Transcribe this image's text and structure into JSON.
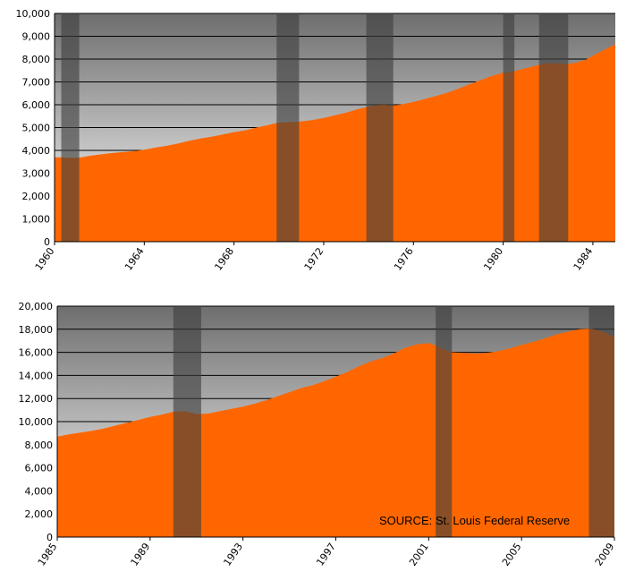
{
  "colors": {
    "area": "#FF6600",
    "recession": "#3F3F3F",
    "gridline": "#000000"
  },
  "source_note": "SOURCE: St. Louis Federal Reserve",
  "chart_data": [
    {
      "type": "area",
      "title": "",
      "xlabel": "",
      "ylabel": "",
      "xlim": [
        1960.0,
        1985.0
      ],
      "ylim": [
        0,
        10000
      ],
      "yticks": [
        0,
        1000,
        2000,
        3000,
        4000,
        5000,
        6000,
        7000,
        8000,
        9000,
        10000
      ],
      "ytick_labels": [
        "0",
        "1,000",
        "2,000",
        "3,000",
        "4,000",
        "5,000",
        "6,000",
        "7,000",
        "8,000",
        "9,000",
        "10,000"
      ],
      "xtick_labels": [
        "1960",
        "1964",
        "1968",
        "1972",
        "1976",
        "1980",
        "1984"
      ],
      "grid": true,
      "legend": "none",
      "x": [
        1960.0,
        1960.3,
        1960.6,
        1960.9,
        1961.2,
        1961.5,
        1962.0,
        1962.5,
        1963.0,
        1963.5,
        1964.0,
        1964.5,
        1965.0,
        1965.5,
        1966.0,
        1966.5,
        1967.0,
        1967.5,
        1968.0,
        1968.5,
        1969.0,
        1969.5,
        1969.9,
        1970.3,
        1970.8,
        1971.0,
        1971.5,
        1972.0,
        1972.5,
        1973.0,
        1973.5,
        1973.9,
        1974.3,
        1974.7,
        1975.1,
        1975.5,
        1976.0,
        1976.5,
        1977.0,
        1977.5,
        1978.0,
        1978.5,
        1979.0,
        1979.5,
        1980.0,
        1980.3,
        1980.6,
        1981.0,
        1981.5,
        1981.8,
        1982.2,
        1982.6,
        1982.9,
        1983.3,
        1983.7,
        1984.0,
        1984.5,
        1985.0
      ],
      "series": [
        {
          "values": [
            3700,
            3700,
            3680,
            3670,
            3700,
            3750,
            3820,
            3880,
            3920,
            3960,
            4030,
            4120,
            4200,
            4300,
            4420,
            4520,
            4600,
            4700,
            4800,
            4880,
            5000,
            5100,
            5200,
            5230,
            5250,
            5270,
            5330,
            5420,
            5540,
            5650,
            5800,
            5900,
            5980,
            6000,
            5960,
            6020,
            6120,
            6250,
            6380,
            6520,
            6700,
            6900,
            7080,
            7260,
            7400,
            7420,
            7500,
            7600,
            7720,
            7800,
            7820,
            7800,
            7780,
            7850,
            7980,
            8150,
            8400,
            8650
          ]
        }
      ],
      "recessions": [
        [
          1960.3,
          1961.1
        ],
        [
          1969.9,
          1970.9
        ],
        [
          1973.9,
          1975.1
        ],
        [
          1980.0,
          1980.5
        ],
        [
          1981.6,
          1982.9
        ]
      ]
    },
    {
      "type": "area",
      "title": "",
      "xlabel": "",
      "ylabel": "",
      "xlim": [
        1985.0,
        2009.0
      ],
      "ylim": [
        0,
        20000
      ],
      "yticks": [
        0,
        2000,
        4000,
        6000,
        8000,
        10000,
        12000,
        14000,
        16000,
        18000,
        20000
      ],
      "ytick_labels": [
        "0",
        "2,000",
        "4,000",
        "6,000",
        "8,000",
        "10,000",
        "12,000",
        "14,000",
        "16,000",
        "18,000",
        "20,000"
      ],
      "xtick_labels": [
        "1985",
        "1989",
        "1993",
        "1997",
        "2001",
        "2005",
        "2009"
      ],
      "grid": true,
      "legend": "none",
      "x": [
        1985.0,
        1985.5,
        1986.0,
        1986.5,
        1987.0,
        1987.5,
        1988.0,
        1988.5,
        1989.0,
        1989.5,
        1990.0,
        1990.5,
        1991.0,
        1991.5,
        1992.0,
        1992.5,
        1993.0,
        1993.5,
        1994.0,
        1994.5,
        1995.0,
        1995.5,
        1996.0,
        1996.5,
        1997.0,
        1997.5,
        1998.0,
        1998.5,
        1999.0,
        1999.5,
        2000.0,
        2000.5,
        2001.0,
        2001.3,
        2001.6,
        2002.0,
        2002.5,
        2003.0,
        2003.5,
        2004.0,
        2004.5,
        2005.0,
        2005.5,
        2006.0,
        2006.5,
        2007.0,
        2007.5,
        2008.0,
        2008.5,
        2009.0
      ],
      "series": [
        {
          "values": [
            8700,
            8900,
            9050,
            9200,
            9400,
            9650,
            9900,
            10150,
            10400,
            10600,
            10850,
            10900,
            10650,
            10700,
            10900,
            11100,
            11300,
            11550,
            11850,
            12200,
            12550,
            12900,
            13150,
            13500,
            13900,
            14300,
            14800,
            15200,
            15500,
            15900,
            16400,
            16700,
            16800,
            16600,
            16300,
            16000,
            15950,
            15900,
            15950,
            16100,
            16350,
            16650,
            16900,
            17200,
            17550,
            17800,
            18000,
            18050,
            17800,
            17300
          ]
        }
      ],
      "recessions": [
        [
          1990.0,
          1991.2
        ],
        [
          2001.3,
          2002.0
        ],
        [
          2007.9,
          2009.0
        ]
      ]
    }
  ]
}
